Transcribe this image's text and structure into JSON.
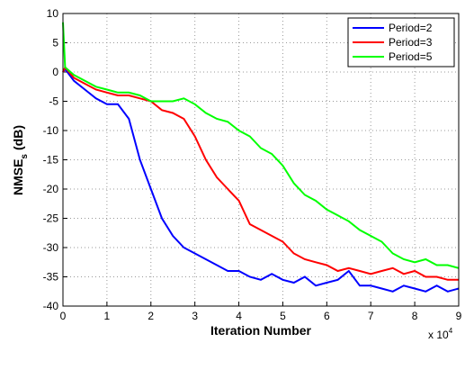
{
  "chart_data": {
    "type": "line",
    "xlabel": "Iteration Number",
    "ylabel": {
      "main": "NMSE",
      "sub": "s",
      "unit": "(dB)"
    },
    "x_multiplier": {
      "base": "x 10",
      "exp": "4"
    },
    "x": [
      0,
      0.05,
      0.25,
      0.5,
      0.75,
      1,
      1.25,
      1.5,
      1.75,
      2,
      2.25,
      2.5,
      2.75,
      3,
      3.25,
      3.5,
      3.75,
      4,
      4.25,
      4.5,
      4.75,
      5,
      5.25,
      5.5,
      5.75,
      6,
      6.25,
      6.5,
      6.75,
      7,
      7.25,
      7.5,
      7.75,
      8,
      8.25,
      8.5,
      8.75,
      9
    ],
    "series": [
      {
        "name": "Period=2",
        "color": "#0000ff",
        "values": [
          0,
          0.5,
          -1.5,
          -3,
          -4.5,
          -5.5,
          -5.5,
          -8,
          -15,
          -20,
          -25,
          -28,
          -30,
          -31,
          -32,
          -33,
          -34,
          -34,
          -35,
          -35.5,
          -34.5,
          -35.5,
          -36,
          -35,
          -36.5,
          -36,
          -35.5,
          -34,
          -36.5,
          -36.5,
          -37,
          -37.5,
          -36.5,
          -37,
          -37.5,
          -36.5,
          -37.5,
          -37
        ]
      },
      {
        "name": "Period=3",
        "color": "#ff0000",
        "values": [
          0,
          0.8,
          -1,
          -2,
          -3,
          -3.5,
          -4,
          -4,
          -4.5,
          -5,
          -6.5,
          -7,
          -8,
          -11,
          -15,
          -18,
          -20,
          -22,
          -26,
          -27,
          -28,
          -29,
          -31,
          -32,
          -32.5,
          -33,
          -34,
          -33.5,
          -34,
          -34.5,
          -34,
          -33.5,
          -34.5,
          -34,
          -35,
          -35,
          -35.5,
          -35.5
        ]
      },
      {
        "name": "Period=5",
        "color": "#00ff00",
        "values": [
          8.5,
          0.8,
          -0.5,
          -1.5,
          -2.5,
          -3,
          -3.5,
          -3.5,
          -4,
          -5,
          -5,
          -5,
          -4.5,
          -5.5,
          -7,
          -8,
          -8.5,
          -10,
          -11,
          -13,
          -14,
          -16,
          -19,
          -21,
          -22,
          -23.5,
          -24.5,
          -25.5,
          -27,
          -28,
          -29,
          -31,
          -32,
          -32.5,
          -32,
          -33,
          -33,
          -33.5
        ]
      }
    ],
    "xlim": [
      0,
      9
    ],
    "xticks": [
      0,
      1,
      2,
      3,
      4,
      5,
      6,
      7,
      8,
      9
    ],
    "ylim": [
      -40,
      10
    ],
    "yticks": [
      -40,
      -35,
      -30,
      -25,
      -20,
      -15,
      -10,
      -5,
      0,
      5,
      10
    ],
    "grid": true,
    "legend": "upper-right"
  }
}
